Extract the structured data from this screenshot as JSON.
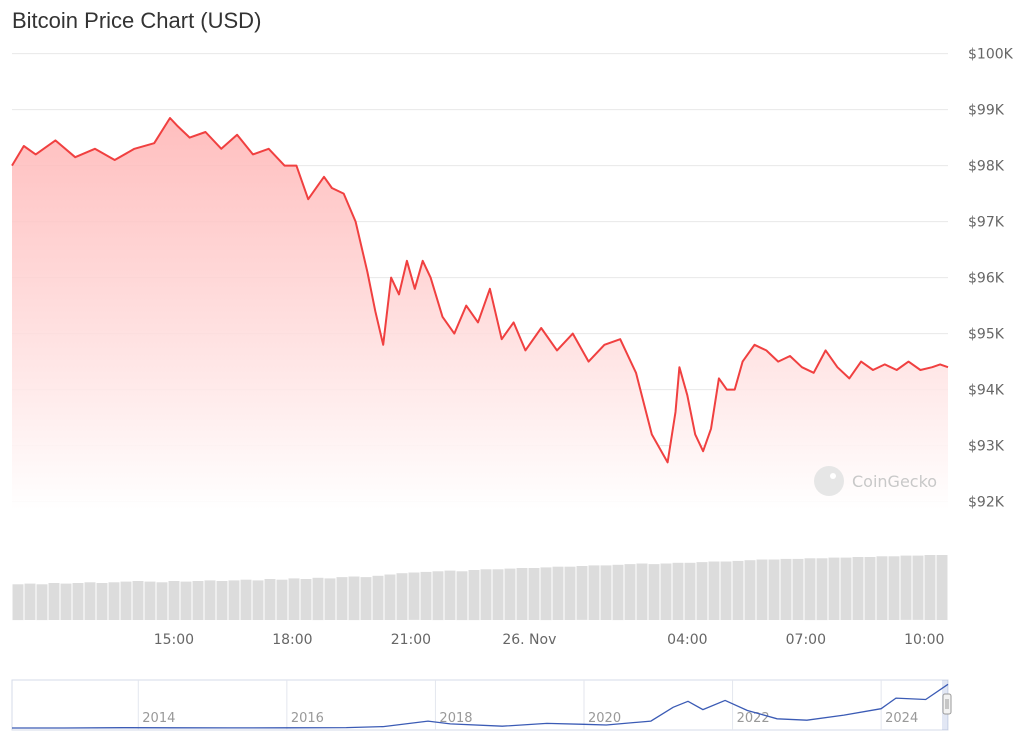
{
  "title": "Bitcoin Price Chart (USD)",
  "watermark": "CoinGecko",
  "colors": {
    "line": "#f04040",
    "fill": "#ffb3b3",
    "volume": "#dcdcdc",
    "navigator": "#3b5bb5",
    "grid": "#e8e8e8"
  },
  "chart_data": {
    "type": "area",
    "title": "Bitcoin Price Chart (USD)",
    "y_ticks": [
      "$100K",
      "$99K",
      "$98K",
      "$97K",
      "$96K",
      "$95K",
      "$94K",
      "$93K",
      "$92K"
    ],
    "y_tick_values": [
      100000,
      99000,
      98000,
      97000,
      96000,
      95000,
      94000,
      93000,
      92000
    ],
    "ylim": [
      91850,
      100100
    ],
    "x_ticks": [
      "15:00",
      "18:00",
      "21:00",
      "26. Nov",
      "04:00",
      "07:00",
      "10:00"
    ],
    "x_tick_hours": [
      15,
      18,
      21,
      24,
      28,
      31,
      34
    ],
    "xlim": [
      10.9,
      34.6
    ],
    "grid": true,
    "series": [
      {
        "x": [
          10.9,
          11.2,
          11.5,
          12.0,
          12.5,
          13.0,
          13.5,
          14.0,
          14.5,
          14.9,
          15.1,
          15.4,
          15.8,
          16.2,
          16.6,
          17.0,
          17.4,
          17.8,
          18.1,
          18.4,
          18.8,
          19.0,
          19.3,
          19.6,
          19.9,
          20.1,
          20.3,
          20.5,
          20.7,
          20.9,
          21.1,
          21.3,
          21.5,
          21.8,
          22.1,
          22.4,
          22.7,
          23.0,
          23.3,
          23.6,
          23.9,
          24.3,
          24.7,
          25.1,
          25.5,
          25.9,
          26.3,
          26.7,
          27.1,
          27.5,
          27.7,
          27.8,
          28.0,
          28.2,
          28.4,
          28.6,
          28.8,
          29.0,
          29.2,
          29.4,
          29.7,
          30.0,
          30.3,
          30.6,
          30.9,
          31.2,
          31.5,
          31.8,
          32.1,
          32.4,
          32.7,
          33.0,
          33.3,
          33.6,
          33.9,
          34.2,
          34.4,
          34.6
        ],
        "values": [
          98000,
          98350,
          98200,
          98450,
          98150,
          98300,
          98100,
          98300,
          98400,
          98850,
          98700,
          98500,
          98600,
          98300,
          98550,
          98200,
          98300,
          98000,
          98000,
          97400,
          97800,
          97600,
          97500,
          97000,
          96100,
          95400,
          94800,
          96000,
          95700,
          96300,
          95800,
          96300,
          96000,
          95300,
          95000,
          95500,
          95200,
          95800,
          94900,
          95200,
          94700,
          95100,
          94700,
          95000,
          94500,
          94800,
          94900,
          94300,
          93200,
          92700,
          93600,
          94400,
          93900,
          93200,
          92900,
          93300,
          94200,
          94000,
          94000,
          94500,
          94800,
          94700,
          94500,
          94600,
          94400,
          94300,
          94700,
          94400,
          94200,
          94500,
          94350,
          94450,
          94350,
          94500,
          94350,
          94400,
          94450,
          94400
        ],
        "volume": [
          0.55,
          0.56,
          0.55,
          0.57,
          0.56,
          0.57,
          0.58,
          0.57,
          0.58,
          0.59,
          0.6,
          0.59,
          0.58,
          0.6,
          0.59,
          0.6,
          0.61,
          0.6,
          0.61,
          0.62,
          0.61,
          0.63,
          0.62,
          0.64,
          0.63,
          0.65,
          0.64,
          0.66,
          0.67,
          0.66,
          0.68,
          0.7,
          0.72,
          0.73,
          0.74,
          0.75,
          0.76,
          0.75,
          0.77,
          0.78,
          0.78,
          0.79,
          0.8,
          0.8,
          0.81,
          0.82,
          0.82,
          0.83,
          0.84,
          0.84,
          0.85,
          0.86,
          0.87,
          0.86,
          0.87,
          0.88,
          0.88,
          0.89,
          0.9,
          0.9,
          0.91,
          0.92,
          0.93,
          0.93,
          0.94,
          0.94,
          0.95,
          0.95,
          0.96,
          0.96,
          0.97,
          0.97,
          0.98,
          0.98,
          0.99,
          0.99,
          1.0,
          1.0
        ]
      }
    ],
    "navigator": {
      "x_ticks": [
        "2014",
        "2016",
        "2018",
        "2020",
        "2022",
        "2024"
      ],
      "x_tick_years": [
        2014,
        2016,
        2018,
        2020,
        2022,
        2024
      ],
      "xlim": [
        2012.3,
        2024.9
      ],
      "x": [
        2012.3,
        2013.0,
        2013.8,
        2014.5,
        2015.2,
        2016.0,
        2016.8,
        2017.3,
        2017.9,
        2018.2,
        2018.9,
        2019.5,
        2020.0,
        2020.3,
        2020.9,
        2021.2,
        2021.4,
        2021.6,
        2021.9,
        2022.2,
        2022.6,
        2023.0,
        2023.5,
        2024.0,
        2024.2,
        2024.6,
        2024.9
      ],
      "values": [
        5,
        10,
        600,
        400,
        300,
        400,
        900,
        3000,
        15000,
        9000,
        4000,
        10000,
        8000,
        6500,
        15000,
        45000,
        58000,
        40000,
        60000,
        38000,
        20000,
        17000,
        28000,
        42000,
        65000,
        62000,
        95000
      ]
    }
  }
}
